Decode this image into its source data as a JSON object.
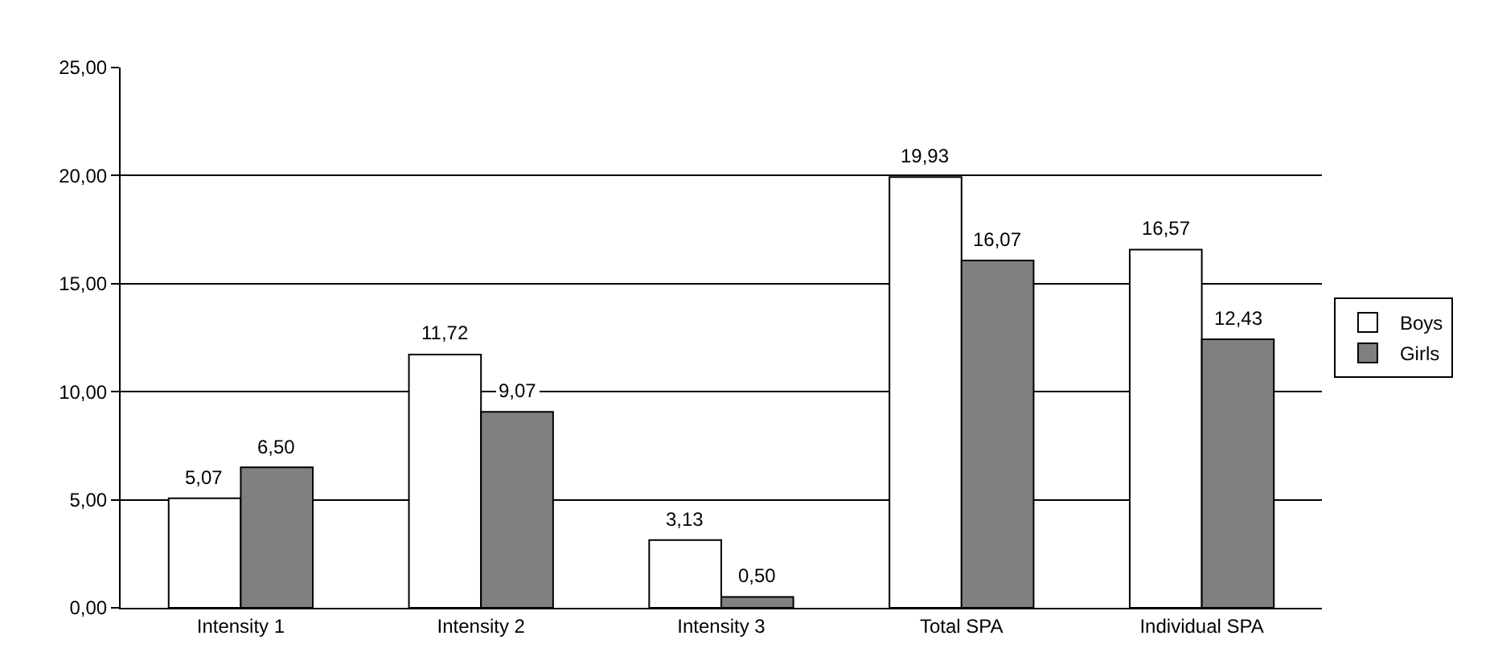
{
  "chart_data": {
    "type": "bar",
    "categories": [
      "Intensity 1",
      "Intensity 2",
      "Intensity 3",
      "Total SPA",
      "Individual SPA"
    ],
    "series": [
      {
        "name": "Boys",
        "color": "#ffffff",
        "values": [
          5.07,
          11.72,
          3.13,
          19.93,
          16.57
        ],
        "value_labels": [
          "5,07",
          "11,72",
          "3,13",
          "19,93",
          "16,57"
        ]
      },
      {
        "name": "Girls",
        "color": "#808080",
        "values": [
          6.5,
          9.07,
          0.5,
          16.07,
          12.43
        ],
        "value_labels": [
          "6,50",
          "9,07",
          "0,50",
          "16,07",
          "12,43"
        ]
      }
    ],
    "ylim": [
      0,
      25
    ],
    "yticks": [
      {
        "value": 0,
        "label": "0,00"
      },
      {
        "value": 5,
        "label": "5,00"
      },
      {
        "value": 10,
        "label": "10,00"
      },
      {
        "value": 15,
        "label": "15,00"
      },
      {
        "value": 20,
        "label": "20,00"
      },
      {
        "value": 25,
        "label": "25,00"
      }
    ],
    "grid": "y",
    "legend": "right"
  }
}
